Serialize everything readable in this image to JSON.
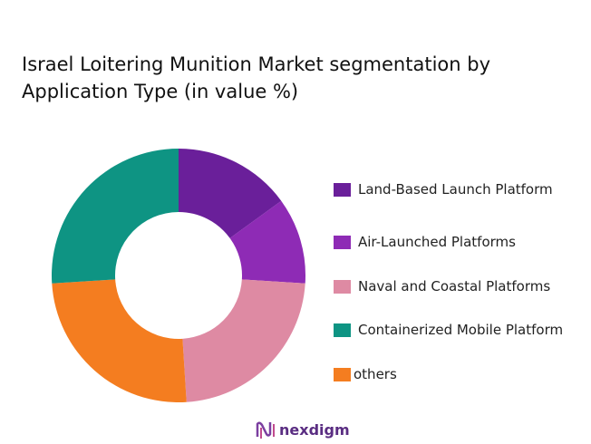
{
  "chart_data": {
    "type": "donut",
    "title": "Israel Loitering Munition Market segmentation by Application Type (in value %)",
    "categories": [
      "Land-Based Launch Platform",
      "Air-Launched Platforms",
      "Naval and Coastal Platforms",
      "Containerized Mobile Platform",
      "others"
    ],
    "values": [
      15,
      11,
      23,
      26,
      25
    ],
    "colors": [
      "#6a1f9a",
      "#8e2bb5",
      "#de8aa3",
      "#0e9483",
      "#f47d20"
    ],
    "legend": "right"
  },
  "brand": "nexdigm"
}
